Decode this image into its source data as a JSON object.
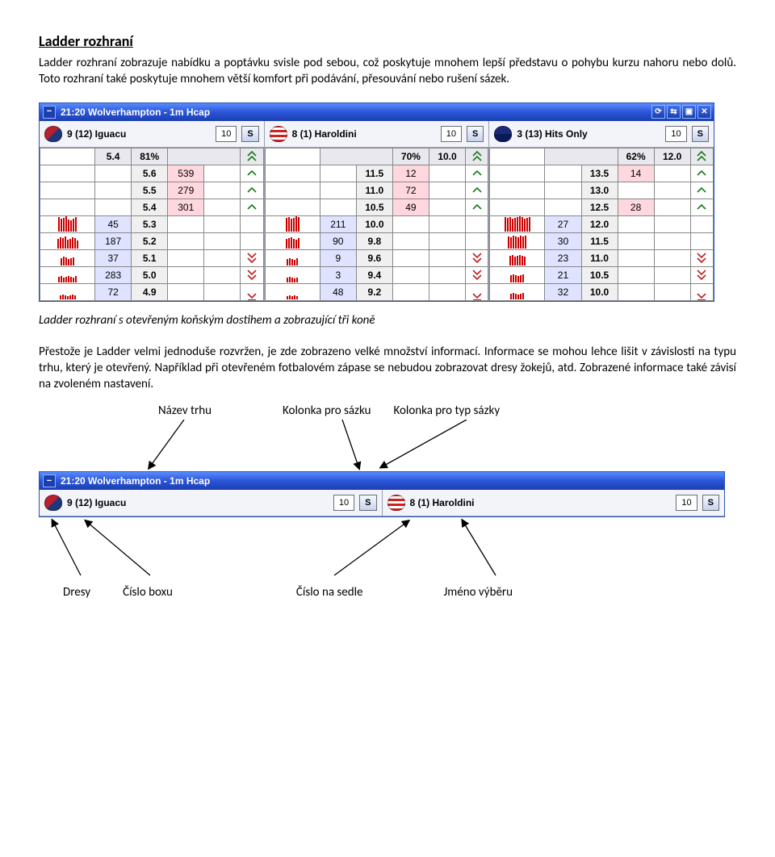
{
  "heading": "Ladder rozhraní",
  "para1": "Ladder rozhraní zobrazuje nabídku a poptávku svisle pod sebou, což poskytuje mnohem lepší představu o pohybu kurzu nahoru nebo dolů. Toto rozhraní také poskytuje mnohem větší komfort při podávání, přesouvání nebo rušení sázek.",
  "caption": "Ladder rozhraní s otevřeným koňským dostihem a zobrazující tři koně",
  "para2": "Přestože je Ladder velmi jednoduše rozvržen, je zde zobrazeno velké množství informací. Informace se mohou lehce lišit v závislosti na typu trhu, který je otevřený. Například při otevřeném fotbalovém zápase se nebudou zobrazovat dresy žokejů, atd. Zobrazené informace také závisí na zvoleném nastavení.",
  "window_title": "21:20 Wolverhampton - 1m Hcap",
  "titlebar_icons": [
    "⟳",
    "⇆",
    "▣",
    "✕"
  ],
  "horses": [
    {
      "no": "9 (12)",
      "name": "Iguacu",
      "stake": "10",
      "type": "S",
      "silk": "s1",
      "pct": "81%"
    },
    {
      "no": "8 (1)",
      "name": "Haroldini",
      "stake": "10",
      "type": "S",
      "silk": "s2",
      "pct": "70%"
    },
    {
      "no": "3 (13)",
      "name": "Hits Only",
      "stake": "10",
      "type": "S",
      "silk": "s3",
      "pct": "62%"
    }
  ],
  "ladder_cols": [
    {
      "summary_left": "",
      "summary_odds": "5.4",
      "summary_pct": "81%",
      "summary_right": "",
      "rows": [
        {
          "l": "",
          "o": "5.6",
          "r": "539",
          "t": "up1",
          "bars": ""
        },
        {
          "l": "",
          "o": "5.5",
          "r": "279",
          "t": "up1",
          "bars": ""
        },
        {
          "l": "",
          "o": "5.4",
          "r": "301",
          "t": "up1",
          "bars": ""
        },
        {
          "l": "45",
          "o": "5.3",
          "r": "",
          "t": "",
          "bars": "r:18,16,17,19,15,14,16,18"
        },
        {
          "l": "187",
          "o": "5.2",
          "r": "",
          "t": "",
          "bars": "r:12,14,13,15,11,12,14,13,10"
        },
        {
          "l": "37",
          "o": "5.1",
          "r": "",
          "t": "dn2",
          "bars": "r:9,11,10,8,9,10"
        },
        {
          "l": "283",
          "o": "5.0",
          "r": "",
          "t": "dn2",
          "bars": "r:7,8,6,7,8,7,6,8"
        },
        {
          "l": "72",
          "o": "4.9",
          "r": "",
          "t": "end",
          "bars": "r:5,6,5,4,5,6,5"
        }
      ]
    },
    {
      "summary_left": "",
      "summary_odds": "",
      "summary_pct": "70%",
      "summary_right": "10.0",
      "rows": [
        {
          "l": "",
          "o": "11.5",
          "r": "12",
          "t": "up1",
          "bars": ""
        },
        {
          "l": "",
          "o": "11.0",
          "r": "72",
          "t": "up1",
          "bars": ""
        },
        {
          "l": "",
          "o": "10.5",
          "r": "49",
          "t": "up1",
          "bars": ""
        },
        {
          "l": "211",
          "o": "10.0",
          "r": "",
          "t": "",
          "bars": "r:17,18,16,17,19,18"
        },
        {
          "l": "90",
          "o": "9.8",
          "r": "",
          "t": "",
          "bars": "r:12,13,14,12,11,13"
        },
        {
          "l": "9",
          "o": "9.6",
          "r": "",
          "t": "dn2",
          "bars": "r:8,9,8,7,9"
        },
        {
          "l": "3",
          "o": "9.4",
          "r": "",
          "t": "dn2",
          "bars": "r:6,7,6,5,6"
        },
        {
          "l": "48",
          "o": "9.2",
          "r": "",
          "t": "end",
          "bars": "r:4,5,4,5,4"
        }
      ]
    },
    {
      "summary_left": "",
      "summary_odds": "",
      "summary_pct": "62%",
      "summary_right": "12.0",
      "rows": [
        {
          "l": "",
          "o": "13.5",
          "r": "14",
          "t": "up1",
          "bars": ""
        },
        {
          "l": "",
          "o": "13.0",
          "r": "",
          "t": "up1",
          "bars": ""
        },
        {
          "l": "",
          "o": "12.5",
          "r": "28",
          "t": "up1",
          "bars": ""
        },
        {
          "l": "27",
          "o": "12.0",
          "r": "",
          "t": "",
          "bars": "r:18,17,18,16,17,18,19,18,16,17,18"
        },
        {
          "l": "30",
          "o": "11.5",
          "r": "",
          "t": "",
          "bars": "r:15,14,16,15,14,16,15,16"
        },
        {
          "l": "23",
          "o": "11.0",
          "r": "",
          "t": "dn2",
          "bars": "r:12,13,11,12,13,12,11"
        },
        {
          "l": "21",
          "o": "10.5",
          "r": "",
          "t": "dn2",
          "bars": "r:9,10,9,8,9,10"
        },
        {
          "l": "32",
          "o": "10.0",
          "r": "",
          "t": "end",
          "bars": "r:7,8,7,6,7,8"
        }
      ]
    }
  ],
  "labels_top": [
    "Název trhu",
    "Kolonka pro sázku",
    "Kolonka pro typ sázky"
  ],
  "labels_bottom": [
    "Dresy",
    "Číslo boxu",
    "Číslo na sedle",
    "Jméno výběru"
  ],
  "colors": {
    "titlebar_from": "#5a8bff",
    "titlebar_to": "#1c3fb0",
    "back": "#dfe3ff",
    "lay": "#ffd7de",
    "odds": "#f0f0f0",
    "red": "#c00",
    "green": "#0a0"
  }
}
